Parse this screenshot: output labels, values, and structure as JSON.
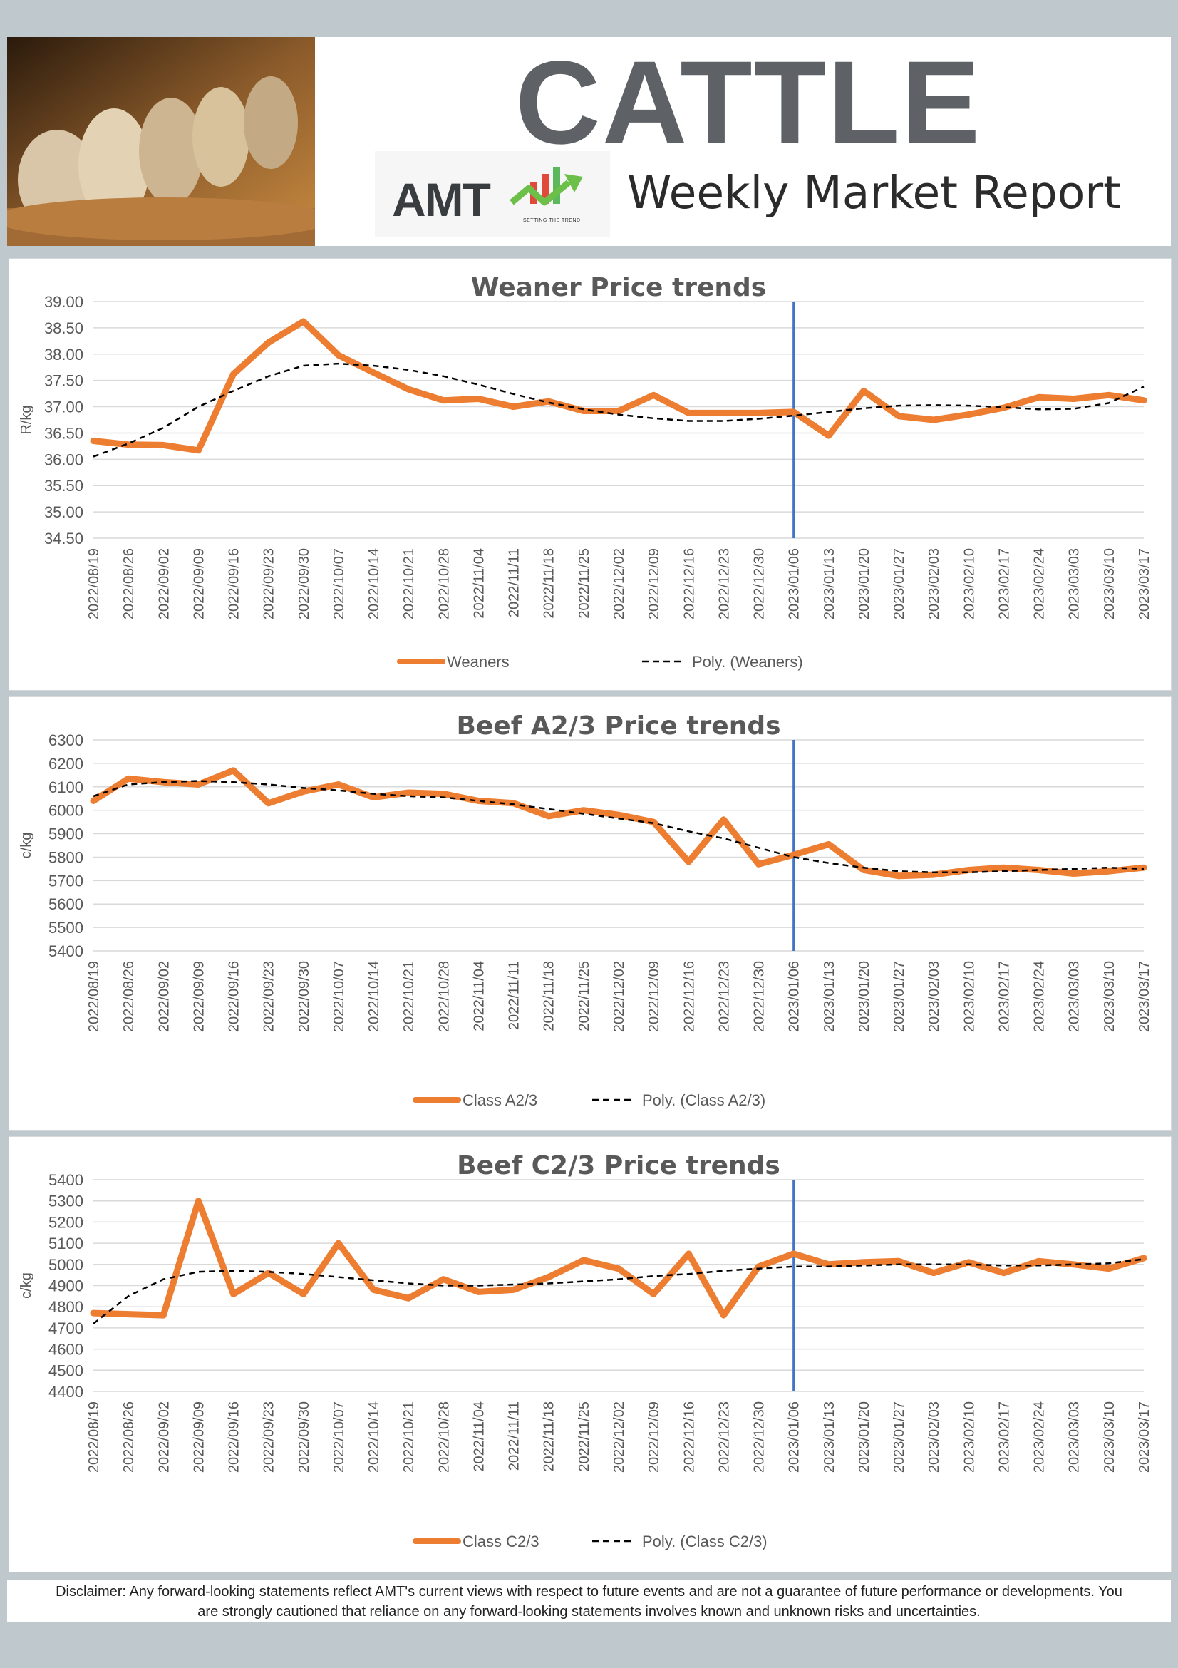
{
  "header": {
    "title": "CATTLE",
    "subtitle": "Weekly Market Report",
    "logo_text": "AMT",
    "logo_tagline": "SETTING THE TREND"
  },
  "colors": {
    "series": "#ed7d31",
    "trend": "#000000",
    "marker_line": "#4472c4",
    "grid": "#d9d9d9",
    "title_text": "#595959",
    "axis_text": "#595959"
  },
  "chart_data": [
    {
      "type": "line",
      "title": "Weaner Price trends",
      "ylabel": "R/kg",
      "ylim": [
        34.5,
        39.0
      ],
      "ystep": 0.5,
      "ydecimals": 2,
      "x": [
        "2022/08/19",
        "2022/08/26",
        "2022/09/02",
        "2022/09/09",
        "2022/09/16",
        "2022/09/23",
        "2022/09/30",
        "2022/10/07",
        "2022/10/14",
        "2022/10/21",
        "2022/10/28",
        "2022/11/04",
        "2022/11/11",
        "2022/11/18",
        "2022/11/25",
        "2022/12/02",
        "2022/12/09",
        "2022/12/16",
        "2022/12/23",
        "2022/12/30",
        "2023/01/06",
        "2023/01/13",
        "2023/01/20",
        "2023/01/27",
        "2023/02/03",
        "2023/02/10",
        "2023/02/17",
        "2023/02/24",
        "2023/03/03",
        "2023/03/10",
        "2023/03/17"
      ],
      "vline_at": "2023/01/06",
      "series": [
        {
          "name": "Weaners",
          "style": "solid",
          "values": [
            36.35,
            36.28,
            36.27,
            36.17,
            37.62,
            38.22,
            38.62,
            37.98,
            37.65,
            37.33,
            37.12,
            37.15,
            37.0,
            37.1,
            36.92,
            36.92,
            37.22,
            36.88,
            36.88,
            36.88,
            36.9,
            36.45,
            37.3,
            36.82,
            36.75,
            36.85,
            36.98,
            37.18,
            37.15,
            37.22,
            37.12
          ]
        },
        {
          "name": "Poly. (Weaners)",
          "style": "dashed",
          "values": [
            36.05,
            36.3,
            36.6,
            37.0,
            37.3,
            37.58,
            37.78,
            37.82,
            37.78,
            37.7,
            37.58,
            37.42,
            37.24,
            37.08,
            36.95,
            36.85,
            36.78,
            36.73,
            36.73,
            36.77,
            36.83,
            36.9,
            36.97,
            37.02,
            37.03,
            37.02,
            36.99,
            36.95,
            36.96,
            37.07,
            37.38
          ]
        }
      ]
    },
    {
      "type": "line",
      "title": "Beef A2/3 Price trends",
      "ylabel": "c/kg",
      "ylim": [
        5400,
        6300
      ],
      "ystep": 100,
      "ydecimals": 0,
      "x": [
        "2022/08/19",
        "2022/08/26",
        "2022/09/02",
        "2022/09/09",
        "2022/09/16",
        "2022/09/23",
        "2022/09/30",
        "2022/10/07",
        "2022/10/14",
        "2022/10/21",
        "2022/10/28",
        "2022/11/04",
        "2022/11/11",
        "2022/11/18",
        "2022/11/25",
        "2022/12/02",
        "2022/12/09",
        "2022/12/16",
        "2022/12/23",
        "2022/12/30",
        "2023/01/06",
        "2023/01/13",
        "2023/01/20",
        "2023/01/27",
        "2023/02/03",
        "2023/02/10",
        "2023/02/17",
        "2023/02/24",
        "2023/03/03",
        "2023/03/10",
        "2023/03/17"
      ],
      "vline_at": "2023/01/06",
      "series": [
        {
          "name": "Class A2/3",
          "style": "solid",
          "values": [
            6040,
            6135,
            6120,
            6110,
            6170,
            6030,
            6080,
            6110,
            6055,
            6075,
            6070,
            6040,
            6030,
            5975,
            6000,
            5980,
            5950,
            5780,
            5960,
            5770,
            5810,
            5855,
            5745,
            5720,
            5725,
            5745,
            5755,
            5745,
            5730,
            5740,
            5755
          ]
        },
        {
          "name": "Poly. (Class A2/3)",
          "style": "dashed",
          "values": [
            6060,
            6110,
            6120,
            6125,
            6120,
            6110,
            6095,
            6085,
            6070,
            6060,
            6055,
            6040,
            6025,
            6005,
            5985,
            5965,
            5945,
            5910,
            5880,
            5840,
            5800,
            5775,
            5755,
            5740,
            5735,
            5735,
            5740,
            5745,
            5750,
            5755,
            5750
          ]
        }
      ]
    },
    {
      "type": "line",
      "title": "Beef C2/3 Price trends",
      "ylabel": "c/kg",
      "ylim": [
        4400,
        5400
      ],
      "ystep": 100,
      "ydecimals": 0,
      "x": [
        "2022/08/19",
        "2022/08/26",
        "2022/09/02",
        "2022/09/09",
        "2022/09/16",
        "2022/09/23",
        "2022/09/30",
        "2022/10/07",
        "2022/10/14",
        "2022/10/21",
        "2022/10/28",
        "2022/11/04",
        "2022/11/11",
        "2022/11/18",
        "2022/11/25",
        "2022/12/02",
        "2022/12/09",
        "2022/12/16",
        "2022/12/23",
        "2022/12/30",
        "2023/01/06",
        "2023/01/13",
        "2023/01/20",
        "2023/01/27",
        "2023/02/03",
        "2023/02/10",
        "2023/02/17",
        "2023/02/24",
        "2023/03/03",
        "2023/03/10",
        "2023/03/17"
      ],
      "vline_at": "2023/01/06",
      "series": [
        {
          "name": "Class C2/3",
          "style": "solid",
          "values": [
            4770,
            4765,
            4760,
            5300,
            4860,
            4960,
            4860,
            5100,
            4880,
            4840,
            4930,
            4870,
            4880,
            4940,
            5020,
            4980,
            4860,
            5050,
            4760,
            4990,
            5050,
            5000,
            5010,
            5015,
            4960,
            5010,
            4960,
            5015,
            5000,
            4980,
            5030
          ]
        },
        {
          "name": "Poly. (Class C2/3)",
          "style": "dashed",
          "values": [
            4720,
            4850,
            4930,
            4965,
            4970,
            4965,
            4955,
            4940,
            4925,
            4910,
            4900,
            4900,
            4905,
            4910,
            4920,
            4930,
            4945,
            4955,
            4970,
            4980,
            4990,
            4990,
            4995,
            5000,
            5000,
            5000,
            4995,
            4995,
            5000,
            5005,
            5025
          ]
        }
      ]
    }
  ],
  "disclaimer": "Disclaimer:  Any forward-looking statements reflect AMT's current views with respect to future events and are not a guarantee of future performance or developments. You are strongly cautioned that reliance on any forward-looking statements involves known and unknown risks and uncertainties."
}
